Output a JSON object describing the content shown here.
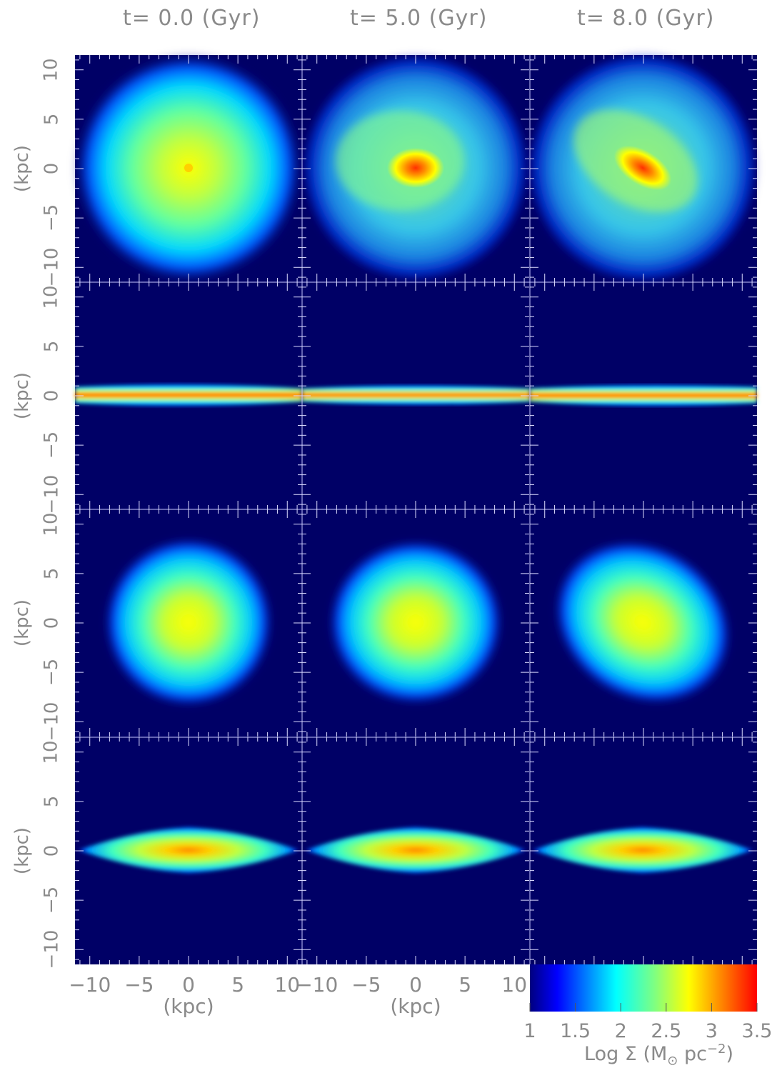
{
  "columns": [
    {
      "title": "t= 0.0 (Gyr)"
    },
    {
      "title": "t= 5.0 (Gyr)"
    },
    {
      "title": "t= 8.0 (Gyr)"
    }
  ],
  "y_axis": {
    "label": "(kpc)",
    "ticks": [
      "10",
      "5",
      "0",
      "−5",
      "−10"
    ]
  },
  "x_axis": {
    "label": "(kpc)",
    "ticks_col1": [
      "−10",
      "−5",
      "0",
      "5",
      "10"
    ],
    "ticks_col2": [
      "−10",
      "−5",
      "0",
      "5",
      "10"
    ]
  },
  "colorbar": {
    "ticks": [
      "1",
      "1.5",
      "2",
      "2.5",
      "3",
      "3.5"
    ],
    "label": "Log Σ (M",
    "label_sub": "⊙",
    "label_end": " pc",
    "label_sup": "−2",
    "label_close": ")",
    "colors": [
      "#00007f",
      "#0000ff",
      "#0080ff",
      "#00ffff",
      "#80ff80",
      "#ffff00",
      "#ff8000",
      "#ff0000"
    ]
  },
  "background_color": "#000066",
  "panels": [
    {
      "row": "face-on disc 1",
      "col": "t=0.0",
      "structure": "axisymmetric disc"
    },
    {
      "row": "face-on disc 1",
      "col": "t=5.0",
      "structure": "spiral arms, small bar"
    },
    {
      "row": "face-on disc 1",
      "col": "t=8.0",
      "structure": "tilted bar"
    },
    {
      "row": "edge-on disc 1",
      "col": "t=0.0",
      "structure": "thin disc"
    },
    {
      "row": "edge-on disc 1",
      "col": "t=5.0",
      "structure": "thin disc"
    },
    {
      "row": "edge-on disc 1",
      "col": "t=8.0",
      "structure": "thin disc"
    },
    {
      "row": "face-on disc 2",
      "col": "t=0.0",
      "structure": "compact round"
    },
    {
      "row": "face-on disc 2",
      "col": "t=5.0",
      "structure": "compact round"
    },
    {
      "row": "face-on disc 2",
      "col": "t=8.0",
      "structure": "elongated"
    },
    {
      "row": "edge-on disc 2",
      "col": "t=0.0",
      "structure": "thick lens"
    },
    {
      "row": "edge-on disc 2",
      "col": "t=5.0",
      "structure": "thick lens"
    },
    {
      "row": "edge-on disc 2",
      "col": "t=8.0",
      "structure": "thick lens"
    }
  ]
}
